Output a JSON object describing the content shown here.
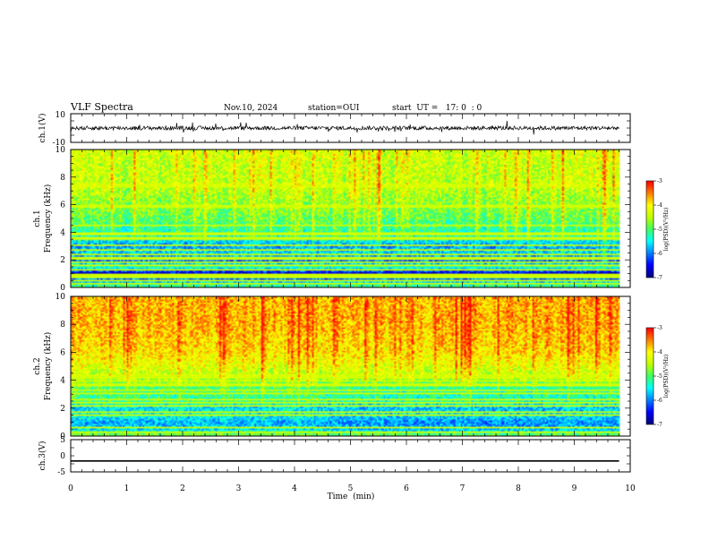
{
  "header": {
    "title": "VLF Spectra",
    "date": "Nov.10, 2024",
    "station": "station=OUI",
    "start_ut": "start  UT =   17: 0  : 0"
  },
  "colors": {
    "scale": [
      "#00007f",
      "#0000ff",
      "#0080ff",
      "#00ffff",
      "#40ff60",
      "#c0ff00",
      "#ffff00",
      "#ff8000",
      "#ff0000",
      "#ffffff"
    ]
  },
  "chart_data": [
    {
      "type": "line",
      "panel": "ch1 waveform",
      "ylabel": "ch.1(V)",
      "ylim": [
        -10,
        10
      ],
      "yticks": [
        "10",
        "-10"
      ],
      "x": [
        0,
        9.8
      ],
      "approx_mean": 0,
      "approx_amplitude": 2,
      "xlim": [
        0,
        10
      ]
    },
    {
      "type": "heatmap",
      "panel": "ch1 spectrogram",
      "ylabel": "ch.1\nFrequency  (kHz)",
      "ylim": [
        0,
        10
      ],
      "yticks": [
        "0",
        "2",
        "4",
        "6",
        "8",
        "10"
      ],
      "xlim": [
        0,
        10
      ],
      "data_end_min": 9.8,
      "color_range": [
        -7,
        -3
      ],
      "colorbar_label": "log(PSD)(V²/Hz)",
      "colorbar_ticks": [
        "-3",
        "-4",
        "-5",
        "-6",
        "-7"
      ],
      "freq_profile_khz": [
        0,
        0.5,
        1,
        1.5,
        2,
        2.5,
        3,
        3.5,
        4,
        5,
        6,
        7,
        8,
        9,
        10
      ],
      "freq_profile_logpsd": [
        -5.0,
        -5.8,
        -6.8,
        -5.2,
        -6.2,
        -5.6,
        -5.9,
        -5.4,
        -5.2,
        -4.9,
        -4.7,
        -4.5,
        -4.4,
        -4.4,
        -4.3
      ]
    },
    {
      "type": "heatmap",
      "panel": "ch2 spectrogram",
      "ylabel": "ch.2\nFrequency  (kHz)",
      "ylim": [
        0,
        10
      ],
      "yticks": [
        "0",
        "2",
        "4",
        "6",
        "8",
        "10"
      ],
      "xlim": [
        0,
        10
      ],
      "data_end_min": 9.8,
      "color_range": [
        -7,
        -3
      ],
      "colorbar_label": "log(PSD)(V²/Hz)",
      "colorbar_ticks": [
        "-3",
        "-4",
        "-5",
        "-6",
        "-7"
      ],
      "freq_profile_khz": [
        0,
        0.5,
        1,
        1.5,
        2,
        2.5,
        3,
        3.5,
        4,
        5,
        6,
        7,
        8,
        9,
        10
      ],
      "freq_profile_logpsd": [
        -4.6,
        -5.6,
        -5.8,
        -5.4,
        -5.6,
        -5.2,
        -5.1,
        -5.0,
        -4.6,
        -4.2,
        -3.9,
        -3.8,
        -3.7,
        -3.7,
        -3.7
      ]
    },
    {
      "type": "line",
      "panel": "ch3 waveform",
      "ylabel": "ch.3(V)",
      "ylim": [
        -5,
        5
      ],
      "yticks": [
        "5",
        "0",
        "-5"
      ],
      "x": [
        0,
        9.8
      ],
      "y": [
        -1.6,
        -1.6
      ],
      "xlim": [
        0,
        10
      ]
    }
  ],
  "xaxis": {
    "label": "Time  (min)",
    "ticks": [
      "0",
      "1",
      "2",
      "3",
      "4",
      "5",
      "6",
      "7",
      "8",
      "9",
      "10"
    ]
  }
}
